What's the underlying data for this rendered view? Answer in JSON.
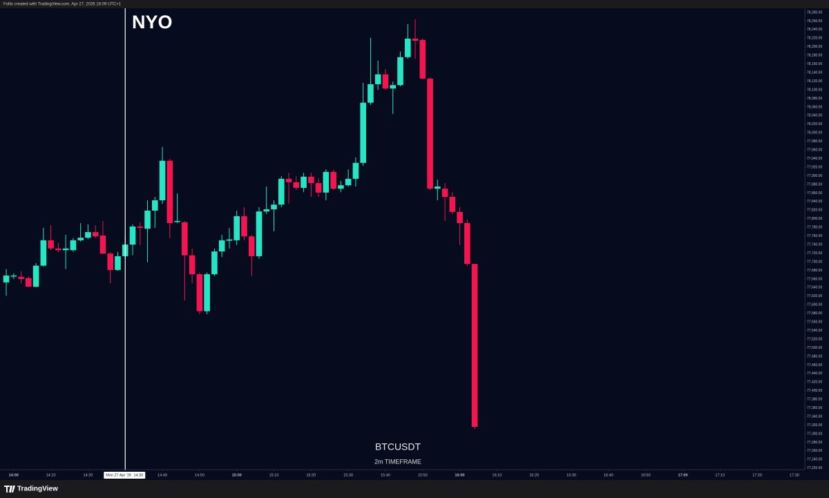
{
  "header": "Follis created with TradingView.com, Apr 27, 2026 16:09 UTC+1",
  "footer": "TradingView",
  "chart_data": {
    "type": "candlestick",
    "title": "NYO",
    "symbol": "BTCUSDT",
    "subtitle": "2m TIMEFRAME",
    "crosshair": {
      "date": "Mon 27 Apr '26",
      "time": "14:30"
    },
    "up_color": "#26e5c4",
    "down_color": "#f2154f",
    "grid": false,
    "open": [
      77652,
      77667,
      77665,
      77662,
      77642,
      77691,
      77750,
      77731,
      77727,
      77727,
      77750,
      77756,
      77769,
      77761,
      77719,
      77681,
      77713,
      77740,
      77782,
      77777,
      77819,
      77843,
      77935,
      77793,
      77792,
      77715,
      77671,
      77585,
      77671,
      77724,
      77749,
      77750,
      77806,
      77759,
      77713,
      77817,
      77822,
      77833,
      77893,
      77885,
      77872,
      77898,
      77883,
      77861,
      77909,
      77870,
      77878,
      77893,
      77930,
      78070,
      78113,
      78136,
      78103,
      78111,
      78176,
      78219,
      78216,
      78126,
      77870,
      77870,
      77851,
      77816,
      77790,
      77695
    ],
    "high": [
      77683,
      77673,
      77678,
      77666,
      77697,
      77779,
      77785,
      77744,
      77763,
      77755,
      77790,
      77787,
      77785,
      77795,
      77723,
      77723,
      77763,
      77787,
      77792,
      77843,
      77851,
      77967,
      77939,
      77859,
      77795,
      77731,
      77675,
      77675,
      77731,
      77763,
      77779,
      77819,
      77827,
      77763,
      77827,
      77875,
      77843,
      77899,
      77907,
      77899,
      77907,
      77907,
      77894,
      77915,
      77914,
      77888,
      77915,
      77943,
      78116,
      78221,
      78168,
      78148,
      78119,
      78189,
      78253,
      78264,
      78219,
      78129,
      77891,
      77883,
      77862,
      77827,
      77798,
      77695
    ],
    "low": [
      77621,
      77660,
      77650,
      77641,
      77641,
      77689,
      77727,
      77723,
      77683,
      77723,
      77747,
      77753,
      77755,
      77718,
      77650,
      77679,
      77707,
      77715,
      77739,
      77699,
      77779,
      77835,
      77755,
      77790,
      77610,
      77650,
      77578,
      77578,
      77667,
      77711,
      77731,
      77739,
      77750,
      77667,
      77707,
      77811,
      77771,
      77827,
      77835,
      77867,
      77862,
      77851,
      77851,
      77843,
      77867,
      77862,
      77875,
      77875,
      77923,
      78065,
      78100,
      78100,
      78044,
      78108,
      78172,
      78172,
      78124,
      77867,
      77843,
      77795,
      77811,
      77739,
      77690,
      77311
    ],
    "close": [
      77668,
      77668,
      77660,
      77642,
      77691,
      77750,
      77731,
      77727,
      77731,
      77750,
      77756,
      77769,
      77759,
      77719,
      77681,
      77713,
      77740,
      77782,
      77779,
      77819,
      77843,
      77935,
      77790,
      77795,
      77715,
      77671,
      77585,
      77671,
      77724,
      77750,
      77752,
      77806,
      77759,
      77713,
      77817,
      77822,
      77833,
      77893,
      77885,
      77872,
      77898,
      77883,
      77861,
      77909,
      77870,
      77878,
      77893,
      77930,
      78070,
      78113,
      78136,
      78103,
      78111,
      78176,
      78219,
      78214,
      78126,
      77870,
      77875,
      77851,
      77816,
      77790,
      77695,
      77316
    ],
    "xlim": [
      -0.84,
      107.4
    ],
    "xticks": [
      {
        "value": 1,
        "label": "14:00"
      },
      {
        "value": 6,
        "label": "14:10"
      },
      {
        "value": 11,
        "label": "14:20"
      },
      {
        "value": 16,
        "label": "14:30"
      },
      {
        "value": 21,
        "label": "14:40"
      },
      {
        "value": 26,
        "label": "14:50"
      },
      {
        "value": 31,
        "label": "15:00"
      },
      {
        "value": 36,
        "label": "15:10"
      },
      {
        "value": 41,
        "label": "15:20"
      },
      {
        "value": 46,
        "label": "15:30"
      },
      {
        "value": 51,
        "label": "15:40"
      },
      {
        "value": 56,
        "label": "15:50"
      },
      {
        "value": 61,
        "label": "16:00"
      },
      {
        "value": 66,
        "label": "16:10"
      },
      {
        "value": 71,
        "label": "16:20"
      },
      {
        "value": 76,
        "label": "16:30"
      },
      {
        "value": 81,
        "label": "16:40"
      },
      {
        "value": 86,
        "label": "16:50"
      },
      {
        "value": 91,
        "label": "17:00"
      },
      {
        "value": 96,
        "label": "17:10"
      },
      {
        "value": 101,
        "label": "17:20"
      },
      {
        "value": 106,
        "label": "17:30"
      }
    ],
    "ylim": [
      77216.5,
      78289.6
    ],
    "yticks": [
      {
        "value": 77220,
        "label": "77,220.00"
      },
      {
        "value": 77240,
        "label": "77,240.00"
      },
      {
        "value": 77260,
        "label": "77,260.00"
      },
      {
        "value": 77280,
        "label": "77,280.00"
      },
      {
        "value": 77300,
        "label": "77,300.00"
      },
      {
        "value": 77320,
        "label": "77,320.00"
      },
      {
        "value": 77340,
        "label": "77,340.00"
      },
      {
        "value": 77360,
        "label": "77,360.00"
      },
      {
        "value": 77380,
        "label": "77,380.00"
      },
      {
        "value": 77400,
        "label": "77,400.00"
      },
      {
        "value": 77420,
        "label": "77,420.00"
      },
      {
        "value": 77440,
        "label": "77,440.00"
      },
      {
        "value": 77460,
        "label": "77,460.00"
      },
      {
        "value": 77480,
        "label": "77,480.00"
      },
      {
        "value": 77500,
        "label": "77,500.00"
      },
      {
        "value": 77520,
        "label": "77,520.00"
      },
      {
        "value": 77540,
        "label": "77,540.00"
      },
      {
        "value": 77560,
        "label": "77,560.00"
      },
      {
        "value": 77580,
        "label": "77,580.00"
      },
      {
        "value": 77600,
        "label": "77,600.00"
      },
      {
        "value": 77620,
        "label": "77,620.00"
      },
      {
        "value": 77640,
        "label": "77,640.00"
      },
      {
        "value": 77660,
        "label": "77,660.00"
      },
      {
        "value": 77680,
        "label": "77,680.00"
      },
      {
        "value": 77700,
        "label": "77,700.00"
      },
      {
        "value": 77720,
        "label": "77,720.00"
      },
      {
        "value": 77740,
        "label": "77,740.00"
      },
      {
        "value": 77760,
        "label": "77,760.00"
      },
      {
        "value": 77780,
        "label": "77,780.00"
      },
      {
        "value": 77800,
        "label": "77,800.00"
      },
      {
        "value": 77820,
        "label": "77,820.00"
      },
      {
        "value": 77840,
        "label": "77,840.00"
      },
      {
        "value": 77860,
        "label": "77,860.00"
      },
      {
        "value": 77880,
        "label": "77,880.00"
      },
      {
        "value": 77900,
        "label": "77,900.00"
      },
      {
        "value": 77920,
        "label": "77,920.00"
      },
      {
        "value": 77940,
        "label": "77,940.00"
      },
      {
        "value": 77960,
        "label": "77,960.00"
      },
      {
        "value": 77980,
        "label": "77,980.00"
      },
      {
        "value": 78000,
        "label": "78,000.00"
      },
      {
        "value": 78020,
        "label": "78,020.00"
      },
      {
        "value": 78040,
        "label": "78,040.00"
      },
      {
        "value": 78060,
        "label": "78,060.00"
      },
      {
        "value": 78080,
        "label": "78,080.00"
      },
      {
        "value": 78100,
        "label": "78,100.00"
      },
      {
        "value": 78120,
        "label": "78,120.00"
      },
      {
        "value": 78140,
        "label": "78,140.00"
      },
      {
        "value": 78160,
        "label": "78,160.00"
      },
      {
        "value": 78180,
        "label": "78,180.00"
      },
      {
        "value": 78200,
        "label": "78,200.00"
      },
      {
        "value": 78220,
        "label": "78,220.00"
      },
      {
        "value": 78240,
        "label": "78,240.00"
      },
      {
        "value": 78260,
        "label": "78,260.00"
      },
      {
        "value": 78280,
        "label": "78,280.00"
      }
    ]
  }
}
